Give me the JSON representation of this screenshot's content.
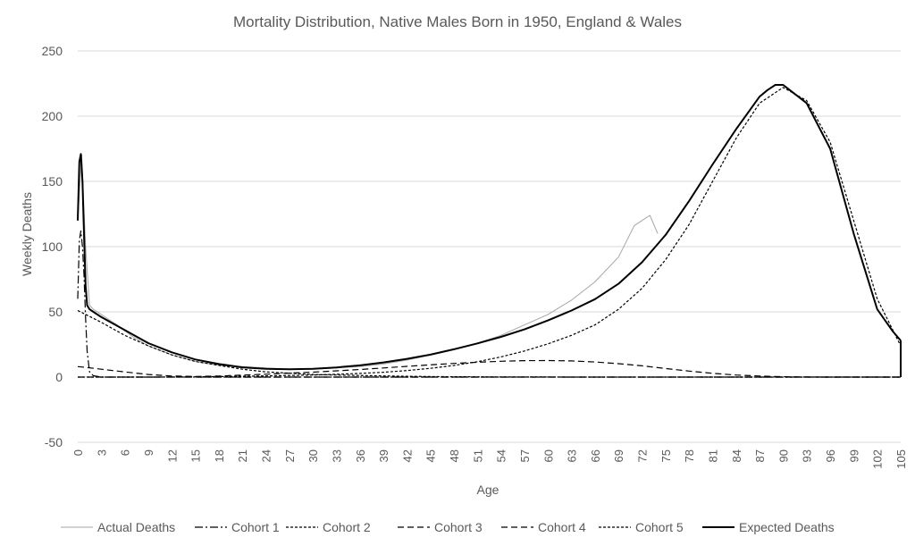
{
  "chart_data": {
    "type": "line",
    "title": "Mortality Distribution, Native Males Born in 1950, England & Wales",
    "xlabel": "Age",
    "ylabel": "Weekly Deaths",
    "xlim": [
      0,
      105
    ],
    "ylim": [
      -50,
      250
    ],
    "y_ticks": [
      -50,
      0,
      50,
      100,
      150,
      200,
      250
    ],
    "x_ticks": [
      0,
      3,
      6,
      9,
      12,
      15,
      18,
      21,
      24,
      27,
      30,
      33,
      36,
      39,
      42,
      45,
      48,
      51,
      54,
      57,
      60,
      63,
      66,
      69,
      72,
      75,
      78,
      81,
      84,
      87,
      90,
      93,
      96,
      99,
      102,
      105
    ],
    "grid": "horizontal",
    "legend_position": "bottom",
    "series": [
      {
        "name": "Actual Deaths",
        "color": "#a6a6a6",
        "style": "solid-thin",
        "age_range": [
          0,
          74
        ],
        "x": [
          0,
          0.5,
          1,
          1.5,
          2,
          3,
          5,
          7,
          9,
          12,
          15,
          18,
          21,
          24,
          27,
          30,
          33,
          36,
          39,
          42,
          45,
          48,
          51,
          54,
          57,
          60,
          63,
          66,
          69,
          70,
          71,
          72,
          73,
          74
        ],
        "values": [
          120,
          170,
          100,
          55,
          52,
          48,
          40,
          31,
          24,
          17,
          12,
          9,
          8,
          7,
          6,
          6,
          7,
          8,
          10,
          13,
          17,
          21,
          26,
          32,
          40,
          48,
          59,
          73,
          92,
          104,
          116,
          120,
          124,
          110
        ]
      },
      {
        "name": "Cohort 1",
        "color": "#000000",
        "style": "dashdot",
        "x": [
          0,
          0.2,
          0.4,
          0.6,
          0.8,
          1,
          1.2,
          1.5,
          2,
          3,
          105
        ],
        "values": [
          60,
          105,
          112,
          100,
          78,
          45,
          20,
          4,
          1,
          0,
          0
        ]
      },
      {
        "name": "Cohort 2",
        "color": "#000000",
        "style": "dotted",
        "x": [
          0,
          1,
          3,
          6,
          9,
          12,
          15,
          18,
          21,
          24,
          27,
          30,
          33,
          36,
          39,
          42,
          45,
          48,
          51,
          54,
          57,
          60,
          63,
          66,
          69,
          72,
          75,
          78,
          81,
          84,
          87,
          90,
          93,
          96,
          99,
          102,
          105
        ],
        "values": [
          51,
          48,
          42,
          32,
          24,
          17,
          12,
          9,
          6,
          4,
          3,
          2,
          1.6,
          1.2,
          0.9,
          0.6,
          0.4,
          0.3,
          0.2,
          0.1,
          0.1,
          0.1,
          0,
          0,
          0,
          0,
          0,
          0,
          0,
          0,
          0,
          0,
          0,
          0,
          0,
          0,
          0
        ]
      },
      {
        "name": "Cohort 3",
        "color": "#000000",
        "style": "dashed",
        "x": [
          0,
          1,
          3,
          6,
          9,
          12,
          15,
          18,
          21,
          24,
          27,
          30,
          33,
          36,
          39,
          42,
          45,
          48,
          51,
          54,
          57,
          60,
          63,
          66,
          69,
          72,
          75,
          78,
          81,
          84,
          87,
          90,
          93,
          96,
          99,
          102,
          105
        ],
        "values": [
          0,
          0,
          0,
          0,
          0,
          0,
          0,
          0,
          0,
          0,
          0,
          0,
          0,
          0,
          0,
          0,
          0,
          0,
          0,
          0,
          0,
          0,
          0,
          0,
          0,
          0,
          0,
          0,
          0,
          0,
          0,
          0,
          0,
          0,
          0,
          0,
          0
        ]
      },
      {
        "name": "Cohort 4",
        "color": "#000000",
        "style": "dashed",
        "x": [
          0,
          1,
          3,
          6,
          9,
          12,
          15,
          18,
          21,
          24,
          27,
          30,
          33,
          36,
          39,
          42,
          45,
          48,
          51,
          54,
          57,
          60,
          63,
          66,
          69,
          72,
          75,
          78,
          81,
          84,
          87,
          90,
          93,
          96,
          99,
          102,
          105
        ],
        "values": [
          8,
          7.5,
          6,
          4,
          2,
          0.8,
          0.5,
          0.8,
          1.5,
          2.2,
          3,
          3.8,
          4.8,
          5.8,
          7,
          8.2,
          9.4,
          10.5,
          11.4,
          12.1,
          12.6,
          12.7,
          12.4,
          11.6,
          10.3,
          8.6,
          6.6,
          4.6,
          2.9,
          1.6,
          0.8,
          0.3,
          0.1,
          0,
          0,
          0,
          0
        ]
      },
      {
        "name": "Cohort 5",
        "color": "#000000",
        "style": "dotted",
        "x": [
          0,
          3,
          6,
          9,
          12,
          15,
          18,
          21,
          24,
          27,
          30,
          33,
          36,
          39,
          42,
          45,
          48,
          51,
          54,
          57,
          60,
          63,
          66,
          69,
          72,
          75,
          78,
          81,
          84,
          87,
          90,
          93,
          96,
          99,
          102,
          105
        ],
        "values": [
          0,
          0,
          0,
          0,
          0.1,
          0.2,
          0.4,
          0.6,
          0.9,
          1.2,
          1.6,
          2.1,
          2.8,
          3.7,
          5,
          6.7,
          8.9,
          11.8,
          15.5,
          20,
          25.5,
          32,
          40,
          52,
          68,
          90,
          117,
          150,
          183,
          210,
          222,
          212,
          180,
          120,
          60,
          24
        ]
      },
      {
        "name": "Expected Deaths",
        "color": "#000000",
        "style": "solid-bold",
        "x": [
          0,
          0.2,
          0.4,
          0.6,
          0.8,
          1,
          1.2,
          1.5,
          2,
          3,
          6,
          9,
          12,
          15,
          18,
          21,
          24,
          27,
          30,
          33,
          36,
          39,
          42,
          45,
          48,
          51,
          54,
          57,
          60,
          63,
          66,
          69,
          72,
          75,
          78,
          81,
          84,
          87,
          88,
          89,
          90,
          93,
          96,
          99,
          102,
          104,
          105
        ],
        "values": [
          120,
          165,
          171,
          150,
          110,
          70,
          55,
          52,
          50,
          46,
          36,
          26,
          19,
          13.5,
          10,
          7.5,
          6.3,
          6,
          6.3,
          7.4,
          9,
          11.2,
          14,
          17.2,
          21.3,
          25.8,
          30.8,
          36.6,
          43.4,
          51,
          59.7,
          71.5,
          88,
          109,
          135,
          163,
          190,
          215,
          220,
          224,
          224,
          210,
          175,
          110,
          52,
          35,
          28
        ]
      }
    ]
  }
}
